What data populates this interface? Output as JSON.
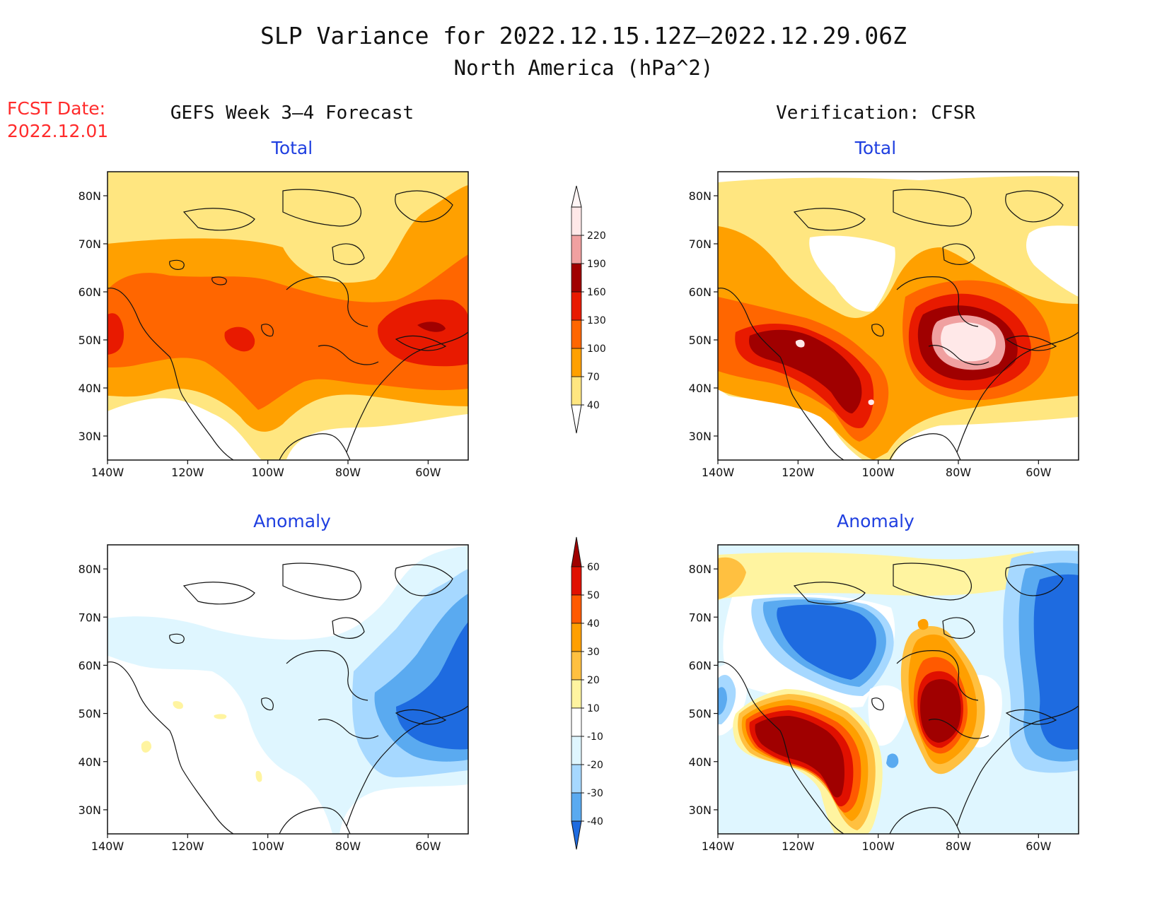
{
  "header": {
    "title_line1": "SLP Variance for 2022.12.15.12Z–2022.12.29.06Z",
    "title_line2": "North America (hPa^2)",
    "fcst_label": "FCST Date:",
    "fcst_date": "2022.12.01"
  },
  "columns": {
    "left": "GEFS Week 3–4 Forecast",
    "right": "Verification: CFSR"
  },
  "panels": [
    {
      "id": "gefs-total",
      "label": "Total"
    },
    {
      "id": "cfsr-total",
      "label": "Total"
    },
    {
      "id": "gefs-anomaly",
      "label": "Anomaly"
    },
    {
      "id": "cfsr-anomaly",
      "label": "Anomaly"
    }
  ],
  "axes": {
    "lat_ticks": [
      "80N",
      "70N",
      "60N",
      "50N",
      "40N",
      "30N"
    ],
    "lon_ticks": [
      "140W",
      "120W",
      "100W",
      "80W",
      "60W"
    ],
    "lat_range": [
      25,
      85
    ],
    "lon_range": [
      -140,
      -50
    ]
  },
  "colorbars": {
    "total": {
      "labels": [
        "40",
        "70",
        "100",
        "130",
        "160",
        "190",
        "220"
      ],
      "colors": [
        "#ffe680",
        "#ffa000",
        "#ff6600",
        "#e81a00",
        "#a00000",
        "#f0a0a0",
        "#ffe8e8"
      ]
    },
    "anomaly": {
      "labels": [
        "60",
        "50",
        "40",
        "30",
        "20",
        "10",
        "-10",
        "-20",
        "-30",
        "-40"
      ],
      "colors": [
        "#a00000",
        "#e01000",
        "#ff5a00",
        "#ff9f00",
        "#ffc040",
        "#fff4a0",
        "#ffffff",
        "#dff6ff",
        "#a6d8ff",
        "#5aaaf0",
        "#1e6be0"
      ]
    }
  },
  "colors": {
    "title_red": "#ff2b2b",
    "subtitle_blue": "#1f3fe0",
    "white_field": "#ffffff"
  }
}
